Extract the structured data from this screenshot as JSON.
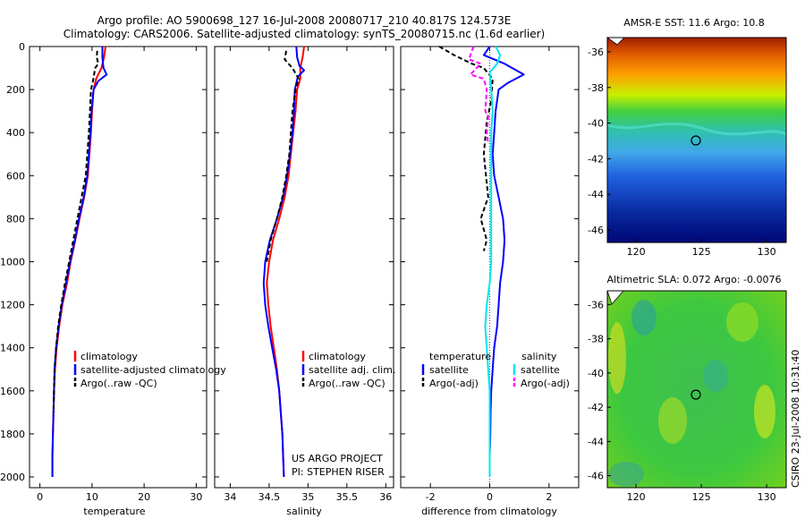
{
  "title": {
    "line1": "Argo profile: AO 5900698_127 16-Jul-2008 20080717_210 40.817S 124.573E",
    "line2": "Climatology: CARS2006. Satellite-adjusted climatology: synTS_20080715.nc (1.6d earlier)"
  },
  "credit": {
    "line1": "US ARGO PROJECT",
    "line2": "PI: STEPHEN RISER",
    "side": "CSIRO 23-Jul-2008 10:31:40"
  },
  "colors": {
    "climatology": "#ff0000",
    "satellite": "#0000ff",
    "argo": "#000000",
    "sal_satellite": "#00e5ee",
    "sal_argo": "#ff00ff"
  },
  "chart_data": [
    {
      "type": "line",
      "id": "temperature",
      "xlabel": "temperature",
      "xlim": [
        -2,
        32
      ],
      "ylim": [
        2050,
        0
      ],
      "xticks": [
        "0",
        "10",
        "20",
        "30"
      ],
      "xtick_values": [
        0,
        10,
        20,
        30
      ],
      "yticks": [
        "0",
        "200",
        "400",
        "600",
        "800",
        "1000",
        "1200",
        "1400",
        "1600",
        "1800",
        "2000"
      ],
      "ytick_values": [
        0,
        200,
        400,
        600,
        800,
        1000,
        1200,
        1400,
        1600,
        1800,
        2000
      ],
      "legend": [
        "climatology",
        "satellite-adjusted climatology",
        "Argo(..raw -QC)"
      ],
      "series": [
        {
          "name": "climatology",
          "color": "#ff0000",
          "dash": "",
          "points": [
            [
              12.6,
              0
            ],
            [
              12.3,
              50
            ],
            [
              11.8,
              100
            ],
            [
              10.8,
              150
            ],
            [
              10.3,
              200
            ],
            [
              10,
              300
            ],
            [
              9.8,
              400
            ],
            [
              9.5,
              500
            ],
            [
              9.2,
              600
            ],
            [
              8.5,
              700
            ],
            [
              7.6,
              800
            ],
            [
              6.8,
              900
            ],
            [
              5.9,
              1000
            ],
            [
              5.2,
              1100
            ],
            [
              4.3,
              1200
            ],
            [
              3.7,
              1300
            ],
            [
              3.2,
              1400
            ],
            [
              2.9,
              1500
            ],
            [
              2.7,
              1600
            ],
            [
              2.6,
              1700
            ],
            [
              2.5,
              1800
            ],
            [
              2.4,
              1900
            ],
            [
              2.4,
              2000
            ]
          ]
        },
        {
          "name": "satellite",
          "color": "#0000ff",
          "dash": "",
          "points": [
            [
              12,
              0
            ],
            [
              12,
              50
            ],
            [
              12.2,
              100
            ],
            [
              12.8,
              130
            ],
            [
              11.2,
              160
            ],
            [
              10.3,
              200
            ],
            [
              9.9,
              300
            ],
            [
              9.7,
              400
            ],
            [
              9.4,
              500
            ],
            [
              9.1,
              600
            ],
            [
              8.4,
              700
            ],
            [
              7.5,
              800
            ],
            [
              6.7,
              900
            ],
            [
              5.8,
              1000
            ],
            [
              5.0,
              1100
            ],
            [
              4.2,
              1200
            ],
            [
              3.6,
              1300
            ],
            [
              3.1,
              1400
            ],
            [
              2.8,
              1500
            ],
            [
              2.7,
              1600
            ],
            [
              2.6,
              1700
            ],
            [
              2.5,
              1800
            ],
            [
              2.4,
              1900
            ],
            [
              2.4,
              2000
            ]
          ]
        },
        {
          "name": "argo",
          "color": "#000000",
          "dash": "5,3",
          "points": [
            [
              11,
              20
            ],
            [
              10.9,
              50
            ],
            [
              11.2,
              80
            ],
            [
              10.6,
              100
            ],
            [
              10.2,
              160
            ],
            [
              9.8,
              200
            ],
            [
              9.6,
              300
            ],
            [
              9.4,
              400
            ],
            [
              9.1,
              500
            ],
            [
              8.8,
              600
            ],
            [
              8.0,
              700
            ],
            [
              7.2,
              800
            ],
            [
              6.4,
              900
            ],
            [
              5.6,
              1000
            ],
            [
              4.8,
              1100
            ],
            [
              4.1,
              1200
            ],
            [
              3.5,
              1300
            ],
            [
              3.1,
              1400
            ],
            [
              2.8,
              1500
            ],
            [
              2.7,
              1600
            ],
            [
              2.6,
              1700
            ]
          ]
        }
      ]
    },
    {
      "type": "line",
      "id": "salinity",
      "xlabel": "salinity",
      "xlim": [
        33.8,
        36.1
      ],
      "ylim": [
        2050,
        0
      ],
      "xticks": [
        "34",
        "34.5",
        "35",
        "35.5",
        "36"
      ],
      "xtick_values": [
        34,
        34.5,
        35,
        35.5,
        36
      ],
      "legend": [
        "climatology",
        "satellite adj. clim.",
        "Argo(..raw -QC)"
      ],
      "series": [
        {
          "name": "climatology",
          "color": "#ff0000",
          "dash": "",
          "points": [
            [
              34.95,
              0
            ],
            [
              34.93,
              50
            ],
            [
              34.9,
              100
            ],
            [
              34.9,
              150
            ],
            [
              34.86,
              200
            ],
            [
              34.84,
              300
            ],
            [
              34.81,
              400
            ],
            [
              34.78,
              500
            ],
            [
              34.75,
              600
            ],
            [
              34.7,
              700
            ],
            [
              34.63,
              800
            ],
            [
              34.55,
              900
            ],
            [
              34.5,
              1000
            ],
            [
              34.47,
              1100
            ],
            [
              34.49,
              1200
            ],
            [
              34.52,
              1300
            ],
            [
              34.56,
              1400
            ],
            [
              34.6,
              1500
            ],
            [
              34.63,
              1600
            ],
            [
              34.65,
              1700
            ],
            [
              34.67,
              1800
            ],
            [
              34.68,
              1900
            ],
            [
              34.69,
              2000
            ]
          ]
        },
        {
          "name": "satellite",
          "color": "#0000ff",
          "dash": "",
          "points": [
            [
              34.85,
              0
            ],
            [
              34.86,
              50
            ],
            [
              34.89,
              90
            ],
            [
              34.95,
              110
            ],
            [
              34.87,
              140
            ],
            [
              34.83,
              200
            ],
            [
              34.82,
              300
            ],
            [
              34.8,
              400
            ],
            [
              34.77,
              500
            ],
            [
              34.73,
              600
            ],
            [
              34.68,
              700
            ],
            [
              34.6,
              800
            ],
            [
              34.51,
              900
            ],
            [
              34.45,
              1000
            ],
            [
              34.43,
              1100
            ],
            [
              34.45,
              1200
            ],
            [
              34.49,
              1300
            ],
            [
              34.54,
              1400
            ],
            [
              34.59,
              1500
            ],
            [
              34.63,
              1600
            ],
            [
              34.65,
              1700
            ],
            [
              34.67,
              1800
            ],
            [
              34.68,
              1900
            ],
            [
              34.69,
              2000
            ]
          ]
        },
        {
          "name": "argo",
          "color": "#000000",
          "dash": "5,3",
          "points": [
            [
              34.72,
              20
            ],
            [
              34.7,
              60
            ],
            [
              34.8,
              100
            ],
            [
              34.88,
              150
            ],
            [
              34.84,
              200
            ],
            [
              34.8,
              300
            ],
            [
              34.78,
              400
            ],
            [
              34.76,
              500
            ],
            [
              34.72,
              600
            ],
            [
              34.67,
              700
            ],
            [
              34.6,
              800
            ],
            [
              34.52,
              900
            ],
            [
              34.47,
              1000
            ]
          ]
        }
      ]
    },
    {
      "type": "line",
      "id": "difference",
      "xlabel": "difference from climatology",
      "xlim": [
        -3,
        3
      ],
      "ylim": [
        2050,
        0
      ],
      "xticks": [
        "-2",
        "0",
        "2"
      ],
      "xtick_values": [
        -2,
        0,
        2
      ],
      "legend_headers": [
        "temperature",
        "salinity"
      ],
      "legend": [
        "satellite",
        "Argo(-adj)",
        "satellite",
        "Argo(-adj)"
      ],
      "series": [
        {
          "name": "temp-satellite",
          "color": "#0000ff",
          "dash": "",
          "points": [
            [
              0,
              0
            ],
            [
              -0.2,
              40
            ],
            [
              0.5,
              80
            ],
            [
              1.15,
              130
            ],
            [
              0.6,
              170
            ],
            [
              0.3,
              200
            ],
            [
              0.2,
              300
            ],
            [
              0.15,
              400
            ],
            [
              0.1,
              500
            ],
            [
              0.15,
              600
            ],
            [
              0.3,
              700
            ],
            [
              0.45,
              800
            ],
            [
              0.5,
              900
            ],
            [
              0.45,
              1000
            ],
            [
              0.35,
              1100
            ],
            [
              0.3,
              1200
            ],
            [
              0.25,
              1300
            ],
            [
              0.15,
              1400
            ],
            [
              0.1,
              1500
            ],
            [
              0.05,
              1600
            ],
            [
              0.03,
              1700
            ],
            [
              0.02,
              1800
            ],
            [
              0,
              1900
            ],
            [
              0,
              2000
            ]
          ]
        },
        {
          "name": "temp-argo",
          "color": "#000000",
          "dash": "5,3",
          "points": [
            [
              -1.7,
              0
            ],
            [
              -1.2,
              40
            ],
            [
              -0.6,
              80
            ],
            [
              -0.2,
              100
            ],
            [
              0.1,
              150
            ],
            [
              0.05,
              250
            ],
            [
              -0.1,
              350
            ],
            [
              -0.2,
              500
            ],
            [
              -0.05,
              700
            ],
            [
              -0.3,
              800
            ],
            [
              -0.1,
              900
            ],
            [
              -0.2,
              950
            ]
          ]
        },
        {
          "name": "sal-satellite",
          "color": "#00e5ee",
          "dash": "",
          "points": [
            [
              0.2,
              0
            ],
            [
              0.35,
              40
            ],
            [
              0.25,
              80
            ],
            [
              0,
              120
            ],
            [
              0.05,
              200
            ],
            [
              0.1,
              300
            ],
            [
              0.05,
              400
            ],
            [
              0.05,
              500
            ],
            [
              0.05,
              600
            ],
            [
              0.05,
              700
            ],
            [
              0.05,
              800
            ],
            [
              0.05,
              900
            ],
            [
              0.05,
              1000
            ],
            [
              0,
              1100
            ],
            [
              -0.1,
              1200
            ],
            [
              -0.15,
              1300
            ],
            [
              -0.1,
              1400
            ],
            [
              -0.05,
              1500
            ],
            [
              0,
              1600
            ],
            [
              0,
              1700
            ],
            [
              0,
              1800
            ],
            [
              0,
              1900
            ],
            [
              0,
              2000
            ]
          ]
        },
        {
          "name": "sal-argo",
          "color": "#ff00ff",
          "dash": "5,3",
          "points": [
            [
              -0.55,
              0
            ],
            [
              -0.7,
              60
            ],
            [
              -0.3,
              80
            ],
            [
              -0.65,
              130
            ],
            [
              -0.2,
              150
            ],
            [
              -0.1,
              200
            ],
            [
              -0.15,
              300
            ],
            [
              -0.05,
              330
            ],
            [
              -0.1,
              400
            ],
            [
              -0.05,
              450
            ]
          ]
        }
      ]
    }
  ],
  "maps": {
    "sst": {
      "title": "AMSR-E SST: 11.6 Argo: 10.8",
      "xticks": [
        "120",
        "125",
        "130"
      ],
      "yticks": [
        "-36",
        "-38",
        "-40",
        "-42",
        "-44",
        "-46"
      ]
    },
    "sla": {
      "title": "Altimetric SLA: 0.072 Argo: -0.0076",
      "xticks": [
        "120",
        "125",
        "130"
      ],
      "yticks": [
        "-36",
        "-38",
        "-40",
        "-42",
        "-44",
        "-46"
      ]
    }
  }
}
